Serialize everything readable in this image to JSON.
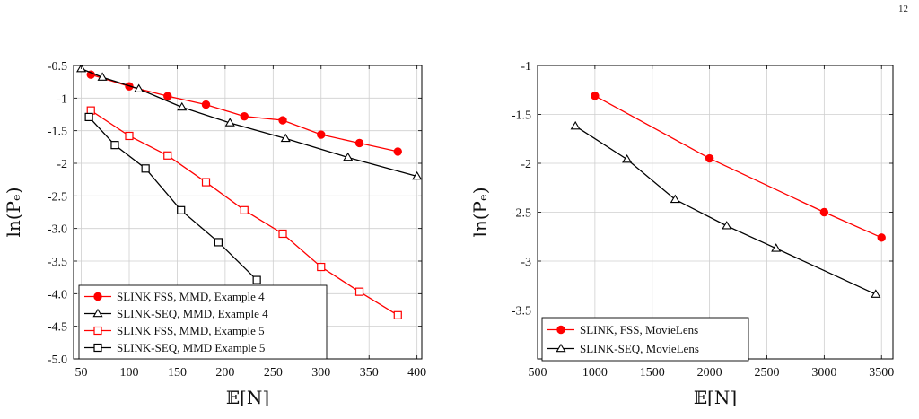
{
  "page_number": "12",
  "chart_data": [
    {
      "type": "line",
      "xlabel": "𝔼[N]",
      "ylabel": "ln(Pₑ)",
      "xlim": [
        42,
        405
      ],
      "ylim": [
        -5.0,
        -0.5
      ],
      "xticks": [
        50,
        100,
        150,
        200,
        250,
        300,
        350,
        400
      ],
      "xtick_labels": [
        "50",
        "100",
        "150",
        "200",
        "250",
        "300",
        "350",
        "400"
      ],
      "yticks": [
        -0.5,
        -1.0,
        -1.5,
        -2.0,
        -2.5,
        -3.0,
        -3.5,
        -4.0,
        -4.5,
        -5.0
      ],
      "ytick_labels": [
        "-0.5",
        "-1",
        "-1.5",
        "-2",
        "-2.5",
        "-3.0",
        "-3.5",
        "-4.0",
        "-4.5",
        "-5.0"
      ],
      "grid": true,
      "legend_position": "bottom-left",
      "series": [
        {
          "name": "SLINK FSS, MMD, Example 4",
          "color": "#ff0000",
          "marker": "circle",
          "x": [
            60,
            100,
            140,
            180,
            220,
            260,
            300,
            340,
            380
          ],
          "y": [
            -0.64,
            -0.82,
            -0.97,
            -1.1,
            -1.28,
            -1.34,
            -1.56,
            -1.69,
            -1.82
          ]
        },
        {
          "name": "SLINK-SEQ, MMD, Example 4",
          "color": "#000000",
          "marker": "triangle",
          "x": [
            50,
            72,
            110,
            155,
            205,
            263,
            328,
            400
          ],
          "y": [
            -0.55,
            -0.68,
            -0.86,
            -1.14,
            -1.38,
            -1.62,
            -1.91,
            -2.2
          ]
        },
        {
          "name": "SLINK FSS, MMD, Example 5",
          "color": "#ff0000",
          "marker": "square",
          "x": [
            60,
            100,
            140,
            180,
            220,
            260,
            300,
            340,
            380
          ],
          "y": [
            -1.19,
            -1.58,
            -1.88,
            -2.29,
            -2.72,
            -3.08,
            -3.59,
            -3.97,
            -4.33
          ]
        },
        {
          "name": "SLINK-SEQ, MMD Example 5",
          "color": "#000000",
          "marker": "square",
          "x": [
            58,
            85,
            117,
            154,
            193,
            233
          ],
          "y": [
            -1.29,
            -1.72,
            -2.08,
            -2.72,
            -3.21,
            -3.79
          ]
        }
      ]
    },
    {
      "type": "line",
      "xlabel": "𝔼[N]",
      "ylabel": "ln(Pₑ)",
      "xlim": [
        500,
        3600
      ],
      "ylim": [
        -4.0,
        -1.0
      ],
      "xticks": [
        500,
        1000,
        1500,
        2000,
        2500,
        3000,
        3500
      ],
      "xtick_labels": [
        "500",
        "1000",
        "1500",
        "2000",
        "2500",
        "3000",
        "3500"
      ],
      "yticks": [
        -1.0,
        -1.5,
        -2.0,
        -2.5,
        -3.0,
        -3.5
      ],
      "ytick_labels": [
        "-1",
        "-1.5",
        "-2",
        "-2.5",
        "-3",
        "-3.5"
      ],
      "grid": true,
      "legend_position": "bottom-left",
      "series": [
        {
          "name": "SLINK, FSS, MovieLens",
          "color": "#ff0000",
          "marker": "circle",
          "x": [
            1000,
            2000,
            3000,
            3500
          ],
          "y": [
            -1.31,
            -1.95,
            -2.5,
            -2.76
          ]
        },
        {
          "name": "SLINK-SEQ, MovieLens",
          "color": "#000000",
          "marker": "triangle",
          "x": [
            830,
            1280,
            1700,
            2150,
            2580,
            3450
          ],
          "y": [
            -1.62,
            -1.96,
            -2.37,
            -2.64,
            -2.87,
            -3.34
          ]
        }
      ]
    }
  ]
}
